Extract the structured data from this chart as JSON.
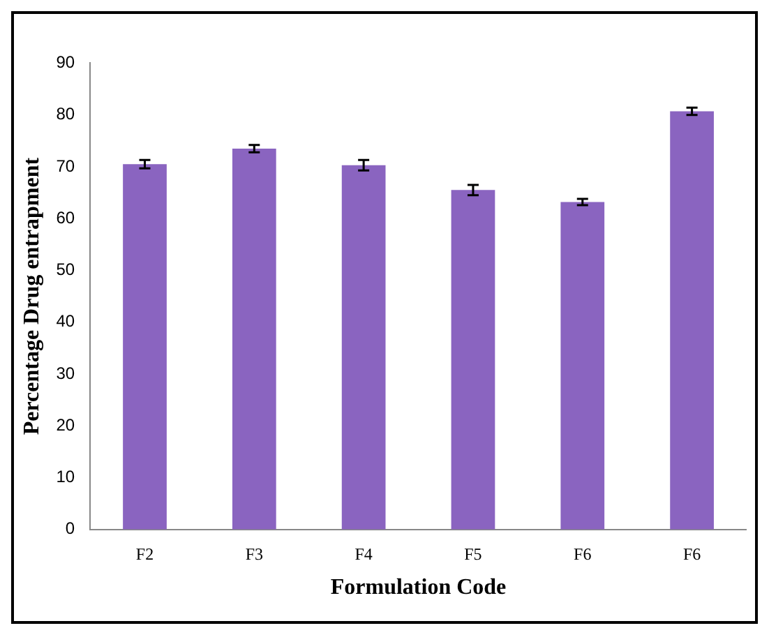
{
  "chart_data": {
    "type": "bar",
    "xlabel": "Formulation Code",
    "ylabel": "Percentage Drug entrapment",
    "categories": [
      "F2",
      "F3",
      "F4",
      "F5",
      "F6",
      "F6"
    ],
    "values": [
      70.5,
      73.5,
      70.3,
      65.5,
      63.2,
      80.7
    ],
    "errors": [
      0.8,
      0.7,
      1.0,
      1.0,
      0.6,
      0.7
    ],
    "color": "#8a64c0",
    "ylim": [
      0,
      90
    ],
    "yticks": [
      0,
      10,
      20,
      30,
      40,
      50,
      60,
      70,
      80,
      90
    ],
    "grid": false,
    "legend": false
  }
}
